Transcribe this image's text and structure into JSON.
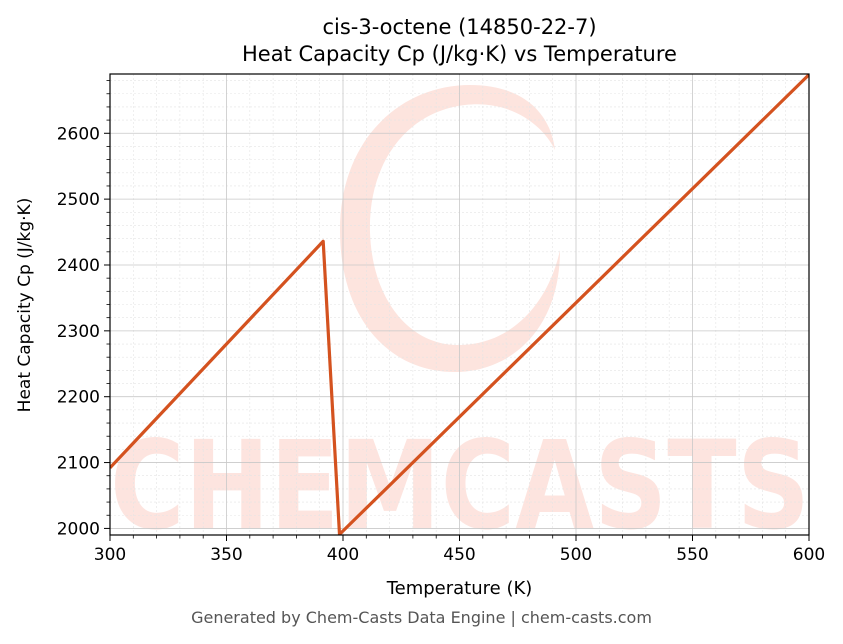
{
  "chart_data": {
    "type": "line",
    "title_line1": "cis-3-octene (14850-22-7)",
    "title_line2": "Heat Capacity Cp (J/kg·K) vs Temperature",
    "xlabel": "Temperature (K)",
    "ylabel": "Heat Capacity Cp (J/kg·K)",
    "xlim": [
      300,
      600
    ],
    "ylim": [
      1990,
      2690
    ],
    "xticks": [
      300,
      350,
      400,
      450,
      500,
      550,
      600
    ],
    "yticks": [
      2000,
      2100,
      2200,
      2300,
      2400,
      2500,
      2600
    ],
    "grid": true,
    "series": [
      {
        "color": "#d4521f",
        "x": [
          300,
          391.5,
          398.5,
          600
        ],
        "y": [
          2092,
          2436,
          1991,
          2689
        ]
      }
    ]
  },
  "watermark": {
    "text": "CHEMCASTS",
    "color": "#fbd3cc"
  },
  "footer": "Generated by Chem-Casts Data Engine | chem-casts.com"
}
